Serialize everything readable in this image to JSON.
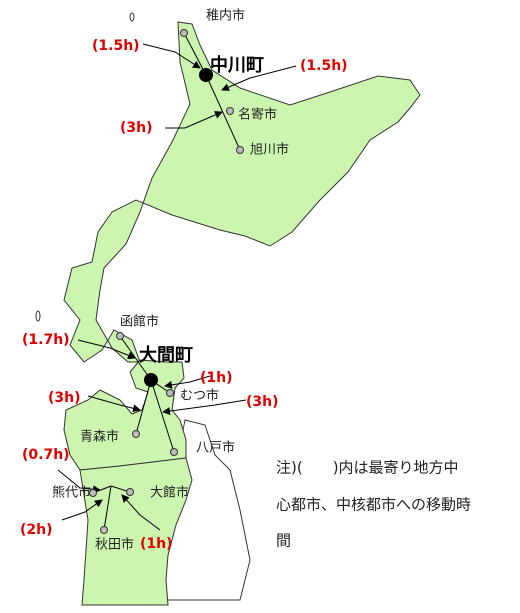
{
  "towns": [
    "中川町",
    "大間町"
  ],
  "cities": [
    "稚内市",
    "名寄市",
    "旭川市",
    "函館市",
    "むつ市",
    "青森市",
    "八戸市",
    "熊代市",
    "大館市",
    "秋田市"
  ],
  "times": [
    "(1.5h)",
    "(1.5h)",
    "(3h)",
    "(1.7h)",
    "(1h)",
    "(3h)",
    "(3h)",
    "(0.7h)",
    "(2h)",
    "(1h)"
  ],
  "note": [
    "注)(　　)内は最寄り地方中",
    "心都市、中核都市への移動時",
    "間"
  ]
}
